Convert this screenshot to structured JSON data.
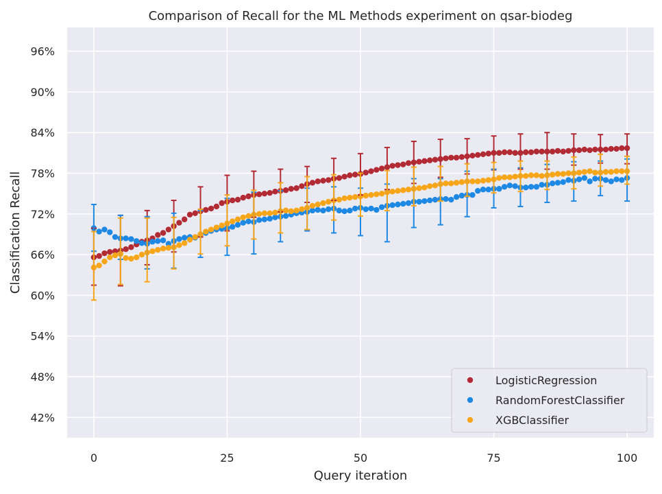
{
  "chart_data": {
    "type": "scatter",
    "title": "Comparison of Recall for the ML Methods experiment on qsar-biodeg",
    "xlabel": "Query iteration",
    "ylabel": "Classification Recall",
    "xlim": [
      -5,
      105
    ],
    "ylim": [
      39.0,
      99.5
    ],
    "xticks": [
      0,
      25,
      50,
      75,
      100
    ],
    "xtick_labels": [
      "0",
      "25",
      "50",
      "75",
      "100"
    ],
    "yticks": [
      42,
      48,
      54,
      60,
      66,
      72,
      78,
      84,
      90,
      96
    ],
    "ytick_labels": [
      "42%",
      "48%",
      "54%",
      "60%",
      "66%",
      "72%",
      "78%",
      "84%",
      "90%",
      "96%"
    ],
    "grid": true,
    "legend_position": "bottom-right",
    "background": "#eaeaf2",
    "series": [
      {
        "name": "LogisticRegression",
        "color": "#b22a33",
        "x": [
          0,
          1,
          2,
          3,
          4,
          5,
          6,
          7,
          8,
          9,
          10,
          11,
          12,
          13,
          14,
          15,
          16,
          17,
          18,
          19,
          20,
          21,
          22,
          23,
          24,
          25,
          26,
          27,
          28,
          29,
          30,
          31,
          32,
          33,
          34,
          35,
          36,
          37,
          38,
          39,
          40,
          41,
          42,
          43,
          44,
          45,
          46,
          47,
          48,
          49,
          50,
          51,
          52,
          53,
          54,
          55,
          56,
          57,
          58,
          59,
          60,
          61,
          62,
          63,
          64,
          65,
          66,
          67,
          68,
          69,
          70,
          71,
          72,
          73,
          74,
          75,
          76,
          77,
          78,
          79,
          80,
          81,
          82,
          83,
          84,
          85,
          86,
          87,
          88,
          89,
          90,
          91,
          92,
          93,
          94,
          95,
          96,
          97,
          98,
          99,
          100
        ],
        "y": [
          65.6,
          65.8,
          66.2,
          66.4,
          66.5,
          66.6,
          66.8,
          67.1,
          67.5,
          67.9,
          68.1,
          68.4,
          68.9,
          69.2,
          69.7,
          70.2,
          70.7,
          71.2,
          71.9,
          72.1,
          72.4,
          72.6,
          72.8,
          73.1,
          73.6,
          73.8,
          74.0,
          74.1,
          74.4,
          74.6,
          74.8,
          74.9,
          75.0,
          75.1,
          75.3,
          75.4,
          75.5,
          75.7,
          75.8,
          76.1,
          76.4,
          76.6,
          76.8,
          76.9,
          77.0,
          77.2,
          77.3,
          77.5,
          77.7,
          77.8,
          77.9,
          78.1,
          78.3,
          78.5,
          78.7,
          78.9,
          79.1,
          79.2,
          79.3,
          79.5,
          79.6,
          79.7,
          79.8,
          79.9,
          80.0,
          80.1,
          80.2,
          80.3,
          80.3,
          80.4,
          80.5,
          80.6,
          80.7,
          80.8,
          80.9,
          81.0,
          81.0,
          81.1,
          81.1,
          81.0,
          81.0,
          81.1,
          81.1,
          81.2,
          81.2,
          81.2,
          81.2,
          81.3,
          81.2,
          81.3,
          81.4,
          81.4,
          81.5,
          81.4,
          81.5,
          81.5,
          81.5,
          81.6,
          81.6,
          81.7,
          81.7
        ],
        "err_x": [
          0,
          5,
          10,
          15,
          20,
          25,
          30,
          35,
          40,
          45,
          50,
          55,
          60,
          65,
          70,
          75,
          80,
          85,
          90,
          95,
          100
        ],
        "err_lo": [
          61.5,
          61.4,
          64.5,
          66.4,
          68.6,
          69.5,
          71.5,
          72.3,
          73.7,
          74.0,
          74.8,
          75.6,
          76.5,
          77.4,
          77.9,
          78.5,
          78.6,
          78.6,
          79.2,
          79.5,
          79.4
        ],
        "err_hi": [
          69.9,
          71.8,
          72.5,
          74.0,
          76.0,
          77.7,
          78.3,
          78.6,
          79.0,
          80.2,
          80.9,
          81.8,
          82.7,
          83.0,
          83.1,
          83.5,
          83.8,
          84.0,
          83.8,
          83.7,
          83.8
        ]
      },
      {
        "name": "RandomForestClassifier",
        "color": "#1e88e5",
        "x": [
          0,
          1,
          2,
          3,
          4,
          5,
          6,
          7,
          8,
          9,
          10,
          11,
          12,
          13,
          14,
          15,
          16,
          17,
          18,
          19,
          20,
          21,
          22,
          23,
          24,
          25,
          26,
          27,
          28,
          29,
          30,
          31,
          32,
          33,
          34,
          35,
          36,
          37,
          38,
          39,
          40,
          41,
          42,
          43,
          44,
          45,
          46,
          47,
          48,
          49,
          50,
          51,
          52,
          53,
          54,
          55,
          56,
          57,
          58,
          59,
          60,
          61,
          62,
          63,
          64,
          65,
          66,
          67,
          68,
          69,
          70,
          71,
          72,
          73,
          74,
          75,
          76,
          77,
          78,
          79,
          80,
          81,
          82,
          83,
          84,
          85,
          86,
          87,
          88,
          89,
          90,
          91,
          92,
          93,
          94,
          95,
          96,
          97,
          98,
          99,
          100
        ],
        "y": [
          69.9,
          69.4,
          69.7,
          69.3,
          68.6,
          68.4,
          68.4,
          68.3,
          68.0,
          67.7,
          67.6,
          67.9,
          68.0,
          68.1,
          67.6,
          68.0,
          68.3,
          68.5,
          68.6,
          68.5,
          68.9,
          69.2,
          69.5,
          69.7,
          69.8,
          69.9,
          70.1,
          70.4,
          70.7,
          70.9,
          70.8,
          71.1,
          71.2,
          71.3,
          71.5,
          71.6,
          71.7,
          71.9,
          72.1,
          72.2,
          72.3,
          72.5,
          72.6,
          72.5,
          72.7,
          72.8,
          72.5,
          72.4,
          72.5,
          72.8,
          72.9,
          72.7,
          72.8,
          72.6,
          73.0,
          73.2,
          73.3,
          73.4,
          73.5,
          73.6,
          73.8,
          73.8,
          73.9,
          74.0,
          74.1,
          74.2,
          74.2,
          74.1,
          74.5,
          74.7,
          74.8,
          74.8,
          75.4,
          75.6,
          75.6,
          75.7,
          75.7,
          76.0,
          76.2,
          76.1,
          75.9,
          75.9,
          76.0,
          76.0,
          76.3,
          76.3,
          76.5,
          76.6,
          76.7,
          77.0,
          76.9,
          77.1,
          77.3,
          76.8,
          77.2,
          77.2,
          77.0,
          76.8,
          77.1,
          77.0,
          77.3
        ],
        "err_x": [
          0,
          5,
          10,
          15,
          20,
          25,
          30,
          35,
          40,
          45,
          50,
          55,
          60,
          65,
          70,
          75,
          80,
          85,
          90,
          95,
          100
        ],
        "err_lo": [
          66.5,
          65.3,
          63.9,
          64.0,
          65.6,
          65.9,
          66.1,
          67.9,
          69.5,
          69.2,
          68.8,
          67.9,
          70.0,
          70.4,
          71.6,
          72.9,
          73.1,
          73.7,
          73.9,
          74.7,
          73.9
        ],
        "err_hi": [
          73.4,
          71.8,
          71.6,
          72.1,
          72.5,
          74.3,
          75.2,
          75.4,
          75.8,
          76.0,
          75.8,
          76.4,
          77.2,
          77.2,
          78.3,
          78.6,
          78.8,
          79.3,
          79.7,
          79.8,
          80.1
        ]
      },
      {
        "name": "XGBClassifier",
        "color": "#f7a519",
        "x": [
          0,
          1,
          2,
          3,
          4,
          5,
          6,
          7,
          8,
          9,
          10,
          11,
          12,
          13,
          14,
          15,
          16,
          17,
          18,
          19,
          20,
          21,
          22,
          23,
          24,
          25,
          26,
          27,
          28,
          29,
          30,
          31,
          32,
          33,
          34,
          35,
          36,
          37,
          38,
          39,
          40,
          41,
          42,
          43,
          44,
          45,
          46,
          47,
          48,
          49,
          50,
          51,
          52,
          53,
          54,
          55,
          56,
          57,
          58,
          59,
          60,
          61,
          62,
          63,
          64,
          65,
          66,
          67,
          68,
          69,
          70,
          71,
          72,
          73,
          74,
          75,
          76,
          77,
          78,
          79,
          80,
          81,
          82,
          83,
          84,
          85,
          86,
          87,
          88,
          89,
          90,
          91,
          92,
          93,
          94,
          95,
          96,
          97,
          98,
          99,
          100
        ],
        "y": [
          64.1,
          64.4,
          65.0,
          65.6,
          65.9,
          66.1,
          65.5,
          65.4,
          65.6,
          66.0,
          66.3,
          66.5,
          66.7,
          66.9,
          67.0,
          67.1,
          67.4,
          67.7,
          68.2,
          68.6,
          69.0,
          69.4,
          69.7,
          70.0,
          70.3,
          70.6,
          70.9,
          71.2,
          71.5,
          71.7,
          71.9,
          72.0,
          72.1,
          72.1,
          72.2,
          72.4,
          72.5,
          72.4,
          72.5,
          72.7,
          72.9,
          73.2,
          73.4,
          73.6,
          73.8,
          74.0,
          74.1,
          74.3,
          74.4,
          74.5,
          74.6,
          74.7,
          74.8,
          74.9,
          75.0,
          75.2,
          75.3,
          75.4,
          75.5,
          75.6,
          75.7,
          75.8,
          75.9,
          76.1,
          76.2,
          76.4,
          76.5,
          76.5,
          76.6,
          76.7,
          76.8,
          76.8,
          76.8,
          76.9,
          77.0,
          77.1,
          77.3,
          77.4,
          77.4,
          77.5,
          77.6,
          77.6,
          77.7,
          77.7,
          77.6,
          77.7,
          77.8,
          77.9,
          77.9,
          78.0,
          78.0,
          78.1,
          78.2,
          78.3,
          78.1,
          78.1,
          78.2,
          78.2,
          78.3,
          78.3,
          78.3
        ],
        "err_x": [
          0,
          5,
          10,
          15,
          20,
          25,
          30,
          35,
          40,
          45,
          50,
          55,
          60,
          65,
          70,
          75,
          80,
          85,
          90,
          95,
          100
        ],
        "err_lo": [
          59.3,
          61.6,
          62.0,
          63.9,
          66.1,
          67.3,
          68.3,
          69.2,
          69.7,
          71.1,
          71.7,
          72.5,
          73.2,
          73.9,
          74.6,
          75.1,
          75.3,
          75.6,
          75.7,
          76.1,
          76.4
        ],
        "err_hi": [
          69.4,
          71.4,
          71.4,
          71.5,
          72.7,
          74.8,
          75.5,
          76.6,
          77.5,
          77.8,
          78.0,
          78.4,
          78.9,
          79.0,
          79.4,
          79.6,
          79.8,
          79.8,
          80.4,
          80.8,
          80.5
        ]
      }
    ]
  }
}
